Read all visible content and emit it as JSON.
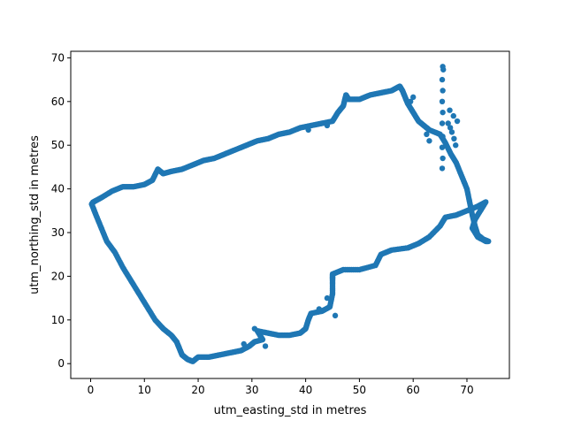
{
  "chart_data": {
    "type": "scatter",
    "title": "",
    "xlabel": "utm_easting_std in metres",
    "ylabel": "utm_northing_std in metres",
    "xlim": [
      -3.7,
      77.9
    ],
    "ylim": [
      -3.4,
      71.5
    ],
    "xticks": [
      0,
      10,
      20,
      30,
      40,
      50,
      60,
      70
    ],
    "yticks": [
      0,
      10,
      20,
      30,
      40,
      50,
      60,
      70
    ],
    "grid": false,
    "marker_color": "#1f77b4",
    "series": [
      {
        "path": [
          [
            0.2,
            36.5
          ],
          [
            1.0,
            34.0
          ],
          [
            2.0,
            31.0
          ],
          [
            3.0,
            28.0
          ],
          [
            4.5,
            25.5
          ],
          [
            6.0,
            22.0
          ],
          [
            7.5,
            19.0
          ],
          [
            9.0,
            16.0
          ],
          [
            10.5,
            13.0
          ],
          [
            12.0,
            10.0
          ],
          [
            13.5,
            8.0
          ],
          [
            15.0,
            6.5
          ],
          [
            16.0,
            5.0
          ],
          [
            16.5,
            3.5
          ],
          [
            17.0,
            2.0
          ],
          [
            18.0,
            1.0
          ],
          [
            19.0,
            0.5
          ],
          [
            20.0,
            1.5
          ],
          [
            22.0,
            1.5
          ],
          [
            24.0,
            2.0
          ],
          [
            26.0,
            2.5
          ],
          [
            28.0,
            3.0
          ],
          [
            29.5,
            4.0
          ],
          [
            30.5,
            5.0
          ],
          [
            32.0,
            5.5
          ],
          [
            31.0,
            7.5
          ],
          [
            33.0,
            7.0
          ],
          [
            35.0,
            6.5
          ],
          [
            37.0,
            6.5
          ],
          [
            39.0,
            7.0
          ],
          [
            40.0,
            8.0
          ],
          [
            40.5,
            10.0
          ],
          [
            41.0,
            11.5
          ],
          [
            43.0,
            12.0
          ],
          [
            44.5,
            13.0
          ],
          [
            45.0,
            16.0
          ],
          [
            45.0,
            19.0
          ],
          [
            45.0,
            20.5
          ],
          [
            47.0,
            21.5
          ],
          [
            50.0,
            21.5
          ],
          [
            53.0,
            22.5
          ],
          [
            54.0,
            25.0
          ],
          [
            56.0,
            26.0
          ],
          [
            59.0,
            26.5
          ],
          [
            61.0,
            27.5
          ],
          [
            63.0,
            29.0
          ],
          [
            65.0,
            31.5
          ],
          [
            66.0,
            33.5
          ],
          [
            68.0,
            34.0
          ],
          [
            70.0,
            35.0
          ],
          [
            72.0,
            36.0
          ],
          [
            73.5,
            37.0
          ],
          [
            72.5,
            35.0
          ],
          [
            71.5,
            33.0
          ],
          [
            71.0,
            31.0
          ],
          [
            72.0,
            29.0
          ],
          [
            73.5,
            28.0
          ],
          [
            74.0,
            28.0
          ],
          [
            73.0,
            28.5
          ],
          [
            72.0,
            29.5
          ],
          [
            71.5,
            31.5
          ],
          [
            71.0,
            34.0
          ],
          [
            70.5,
            37.0
          ],
          [
            70.0,
            40.0
          ],
          [
            69.0,
            43.0
          ],
          [
            68.0,
            46.0
          ],
          [
            67.0,
            48.0
          ],
          [
            66.0,
            50.5
          ],
          [
            65.0,
            52.5
          ],
          [
            63.0,
            53.5
          ],
          [
            62.0,
            54.5
          ],
          [
            61.0,
            55.5
          ],
          [
            60.0,
            57.5
          ],
          [
            59.0,
            59.5
          ],
          [
            58.5,
            61.0
          ],
          [
            58.0,
            62.5
          ],
          [
            57.5,
            63.5
          ],
          [
            56.0,
            62.5
          ],
          [
            54.0,
            62.0
          ],
          [
            52.0,
            61.5
          ],
          [
            50.0,
            60.5
          ],
          [
            48.0,
            60.5
          ],
          [
            47.5,
            61.5
          ],
          [
            47.0,
            59.0
          ],
          [
            46.0,
            57.5
          ],
          [
            45.0,
            55.5
          ],
          [
            43.0,
            55.0
          ],
          [
            41.0,
            54.5
          ],
          [
            39.0,
            54.0
          ],
          [
            37.0,
            53.0
          ],
          [
            35.0,
            52.5
          ],
          [
            33.0,
            51.5
          ],
          [
            31.0,
            51.0
          ],
          [
            29.0,
            50.0
          ],
          [
            27.0,
            49.0
          ],
          [
            25.0,
            48.0
          ],
          [
            23.0,
            47.0
          ],
          [
            21.0,
            46.5
          ],
          [
            19.0,
            45.5
          ],
          [
            17.0,
            44.5
          ],
          [
            15.0,
            44.0
          ],
          [
            13.5,
            43.5
          ],
          [
            12.5,
            44.5
          ],
          [
            11.5,
            42.0
          ],
          [
            10.0,
            41.0
          ],
          [
            8.0,
            40.5
          ],
          [
            6.0,
            40.5
          ],
          [
            4.0,
            39.5
          ],
          [
            2.0,
            38.0
          ],
          [
            0.5,
            37.0
          ],
          [
            0.2,
            36.5
          ]
        ],
        "extra_points": [
          [
            65.5,
            68.0
          ],
          [
            65.6,
            67.3
          ],
          [
            65.4,
            65.0
          ],
          [
            65.5,
            62.5
          ],
          [
            65.4,
            60.0
          ],
          [
            65.5,
            57.5
          ],
          [
            65.4,
            55.0
          ],
          [
            65.5,
            52.0
          ],
          [
            65.4,
            49.5
          ],
          [
            65.5,
            47.0
          ],
          [
            65.4,
            44.7
          ],
          [
            66.8,
            58.0
          ],
          [
            67.5,
            56.7
          ],
          [
            68.2,
            55.5
          ],
          [
            66.5,
            55.0
          ],
          [
            66.9,
            54.0
          ],
          [
            67.2,
            53.0
          ],
          [
            67.6,
            51.5
          ],
          [
            67.9,
            50.0
          ],
          [
            62.5,
            52.5
          ],
          [
            63.0,
            51.0
          ],
          [
            60.0,
            61.0
          ],
          [
            59.5,
            60.0
          ],
          [
            44.0,
            15.0
          ],
          [
            45.5,
            11.0
          ],
          [
            42.5,
            12.5
          ],
          [
            30.5,
            8.0
          ],
          [
            28.5,
            4.5
          ],
          [
            32.5,
            4.0
          ],
          [
            40.5,
            53.5
          ],
          [
            44.0,
            54.5
          ]
        ]
      }
    ]
  }
}
